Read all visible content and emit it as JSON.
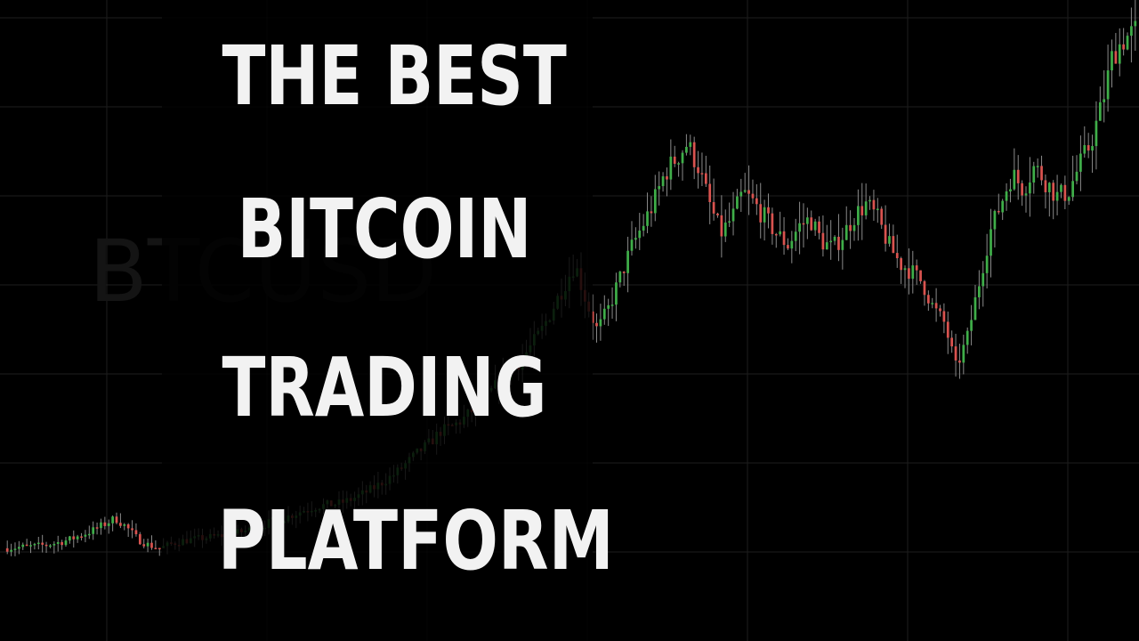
{
  "headline": {
    "line1": "THE BEST",
    "line2": "BITCOIN",
    "line3": "TRADING",
    "line4": "PLATFORM"
  },
  "watermark": {
    "text": "BTCUSD"
  },
  "colors": {
    "background": "#000000",
    "grid": "#1e1e1e",
    "up": "#3fae49",
    "down": "#d9534f",
    "wick": "#8a8a8a",
    "text": "#f2f2f2",
    "watermark": "#141414"
  },
  "chart_data": {
    "type": "line",
    "title": "",
    "xlabel": "",
    "ylabel": "",
    "grid": true,
    "series": [
      {
        "values": [
          100,
          101,
          102,
          103,
          105,
          108,
          112,
          118,
          124,
          132,
          140,
          128,
          112,
          104,
          100,
          106,
          110,
          112,
          114,
          116,
          118,
          121,
          125,
          130,
          136,
          140,
          146,
          152,
          156,
          158,
          160,
          165,
          172,
          180,
          190,
          200,
          214,
          228,
          240,
          256,
          262,
          272,
          286,
          300,
          318,
          332,
          348,
          368,
          390,
          420,
          450,
          480,
          430,
          390,
          420,
          460,
          500,
          530,
          560,
          600,
          620,
          640,
          610,
          560,
          520,
          540,
          575,
          560,
          540,
          520,
          505,
          530,
          540,
          510,
          500,
          520,
          545,
          560,
          540,
          505,
          480,
          470,
          455,
          420,
          400,
          340,
          380,
          450,
          520,
          560,
          600,
          580,
          610,
          590,
          570,
          575,
          610,
          640,
          690,
          760,
          780,
          790
        ]
      }
    ],
    "ylim": [
      0,
      820
    ]
  }
}
